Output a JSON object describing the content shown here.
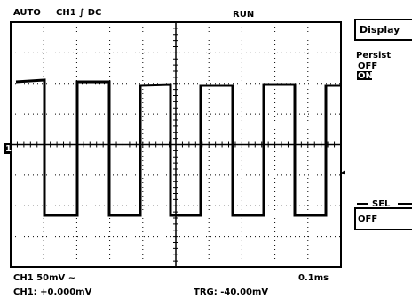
{
  "status_bar": {
    "mode": "AUTO",
    "channel": "CH1 ∫ DC",
    "state": "RUN"
  },
  "channel_marker": "1",
  "menu": {
    "title": "Display",
    "persist": {
      "label": "Persist",
      "options": [
        "OFF",
        "ON"
      ]
    },
    "sel": {
      "label": "SEL",
      "value": "OFF"
    }
  },
  "readout": {
    "scale": "CH1  50mV ~",
    "timebase": "0.1ms",
    "channel_offset": "CH1: +0.000mV",
    "trigger": "TRG: -40.00mV"
  }
}
